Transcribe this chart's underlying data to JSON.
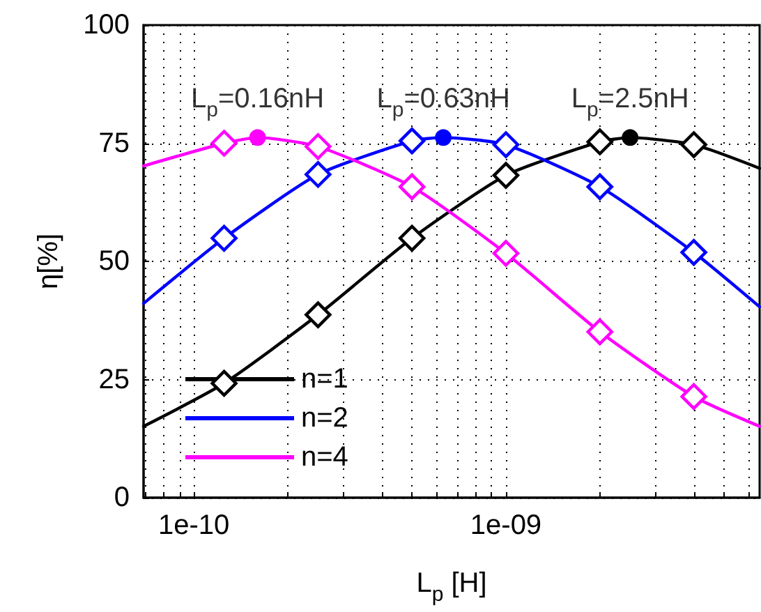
{
  "chart_data": {
    "type": "line",
    "xlabel": "L$_{p}$ [H]",
    "ylabel": "η[%]",
    "log": "x",
    "xlim": [
      6.9e-11,
      6.5e-09
    ],
    "ylim": [
      0,
      100
    ],
    "xticks": [
      {
        "value": 7e-11,
        "label": null
      },
      {
        "value": 8e-11,
        "label": null
      },
      {
        "value": 9e-11,
        "label": null
      },
      {
        "value": 1e-10,
        "label": "1e-10"
      },
      {
        "value": 2e-10,
        "label": null
      },
      {
        "value": 3e-10,
        "label": null
      },
      {
        "value": 4e-10,
        "label": null
      },
      {
        "value": 5e-10,
        "label": null
      },
      {
        "value": 6e-10,
        "label": null
      },
      {
        "value": 7e-10,
        "label": null
      },
      {
        "value": 8e-10,
        "label": null
      },
      {
        "value": 9e-10,
        "label": null
      },
      {
        "value": 1e-09,
        "label": "1e-09"
      },
      {
        "value": 2e-09,
        "label": null
      },
      {
        "value": 3e-09,
        "label": null
      },
      {
        "value": 4e-09,
        "label": null
      },
      {
        "value": 5e-09,
        "label": null
      },
      {
        "value": 6e-09,
        "label": null
      }
    ],
    "yticks": [
      0,
      25,
      50,
      75,
      100
    ],
    "grid": true,
    "legend": "bottom left",
    "series": [
      {
        "name": "n=1",
        "marker": "none",
        "line_style": "solid",
        "color": "#000000",
        "x": [
          6.9e-11,
          1.25e-10,
          2.5e-10,
          5e-10,
          1e-09,
          2e-09,
          2.5e-09,
          4e-09,
          6.5e-09
        ],
        "values": [
          15.1,
          24.2,
          38.7,
          54.9,
          68.2,
          75.3,
          76.2,
          74.7,
          69.7
        ]
      },
      {
        "name": "n=2",
        "marker": "none",
        "line_style": "solid",
        "color": "#0000ff",
        "x": [
          6.9e-11,
          1.25e-10,
          2.5e-10,
          5e-10,
          6.3e-10,
          1e-09,
          2e-09,
          4e-09,
          6.5e-09
        ],
        "values": [
          41.1,
          54.9,
          68.4,
          75.5,
          76.2,
          74.7,
          65.8,
          51.9,
          40.4
        ]
      },
      {
        "name": "n=4",
        "marker": "none",
        "line_style": "solid",
        "color": "#ff00ff",
        "x": [
          6.9e-11,
          1.25e-10,
          1.6e-10,
          2.5e-10,
          5e-10,
          1e-09,
          2e-09,
          4e-09,
          6.5e-09
        ],
        "values": [
          70.2,
          75.0,
          76.2,
          74.3,
          65.8,
          51.7,
          35.1,
          21.4,
          15.1
        ]
      },
      {
        "type": "scatter",
        "marker": "diamond",
        "color": "#000000",
        "x": [
          1.25e-10,
          2.5e-10,
          5e-10,
          1e-09,
          2e-09,
          4e-09
        ],
        "values": [
          24.2,
          38.7,
          54.9,
          68.2,
          75.3,
          74.7
        ]
      },
      {
        "type": "scatter",
        "marker": "diamond",
        "color": "#0000ff",
        "x": [
          1.25e-10,
          2.5e-10,
          5e-10,
          1e-09,
          2e-09,
          4e-09
        ],
        "values": [
          54.9,
          68.4,
          75.5,
          74.7,
          65.8,
          51.9
        ]
      },
      {
        "type": "scatter",
        "marker": "diamond",
        "color": "#ff00ff",
        "x": [
          1.25e-10,
          2.5e-10,
          5e-10,
          1e-09,
          2e-09,
          4e-09
        ],
        "values": [
          75.0,
          74.3,
          65.8,
          51.7,
          35.1,
          21.4
        ]
      },
      {
        "type": "scatter",
        "marker": "circle",
        "color": "#000000",
        "x": [
          2.5e-09
        ],
        "values": [
          76.2
        ]
      },
      {
        "type": "scatter",
        "marker": "circle",
        "color": "#0000ff",
        "x": [
          6.3e-10
        ],
        "values": [
          76.2
        ]
      },
      {
        "type": "scatter",
        "marker": "circle",
        "color": "#ff00ff",
        "x": [
          1.6e-10
        ],
        "values": [
          76.2
        ]
      }
    ],
    "annotations": [
      {
        "text": "L$_{p}$=0.16nH",
        "x": 1.6e-10,
        "y": 76.2
      },
      {
        "text": "L$_{p}$=0.63nH",
        "x": 6.3e-10,
        "y": 76.2
      },
      {
        "text": "L$_{p}$=2.5nH",
        "x": 2.5e-09,
        "y": 76.2
      }
    ]
  }
}
